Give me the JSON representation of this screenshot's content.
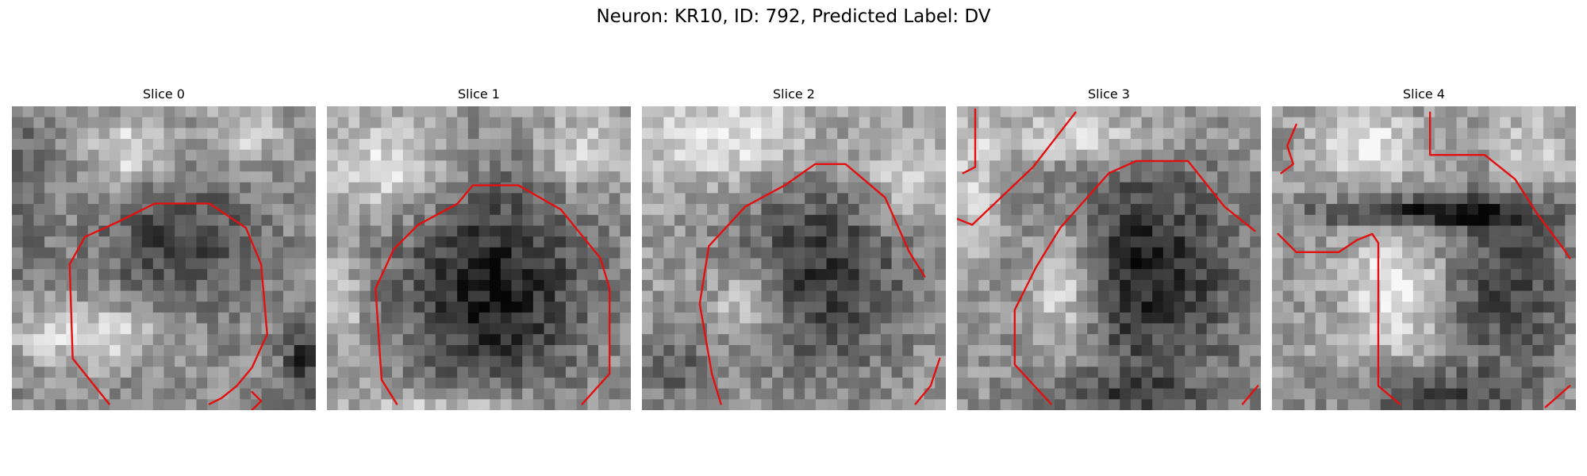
{
  "figure": {
    "title": "Neuron: KR10, ID: 792, Predicted Label: DV",
    "contour_color": "#e31010",
    "colormap": "gray",
    "grid_size": 28
  },
  "panels": [
    {
      "title": "Slice 0"
    },
    {
      "title": "Slice 1"
    },
    {
      "title": "Slice 2"
    },
    {
      "title": "Slice 3"
    },
    {
      "title": "Slice 4"
    }
  ]
}
